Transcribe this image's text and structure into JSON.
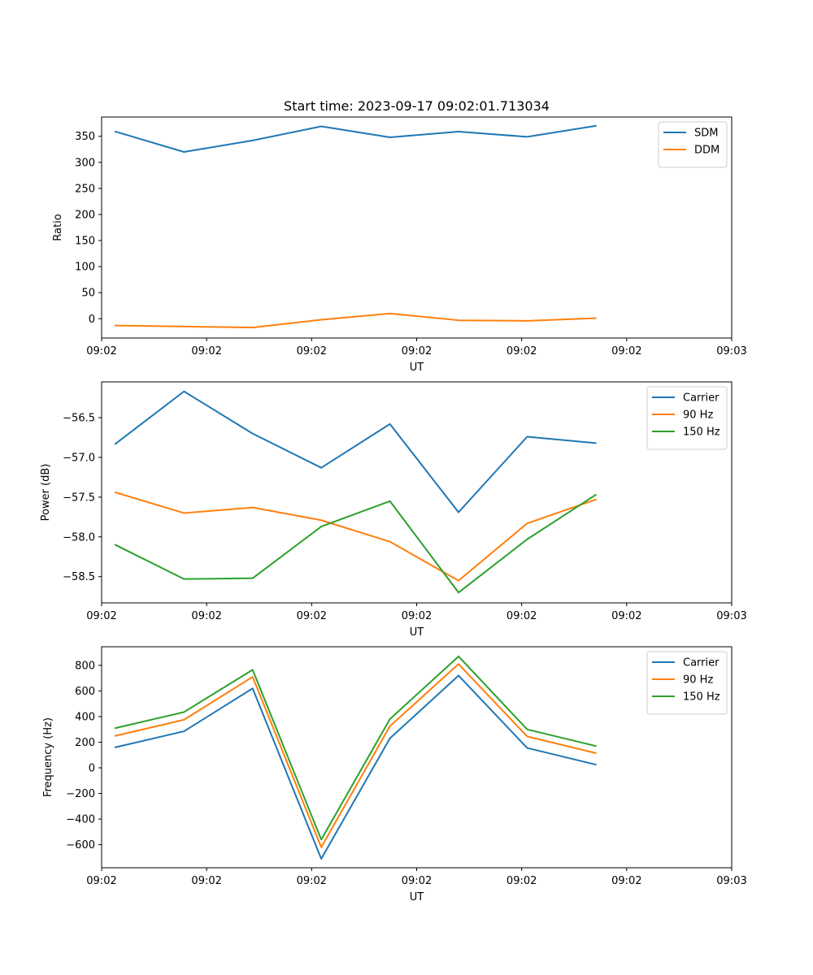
{
  "colors": {
    "blue": "#1f77b4",
    "orange": "#ff7f0e",
    "green": "#2ca02c"
  },
  "chart_data": [
    {
      "type": "line",
      "title": "Start time: 2023-09-17 09:02:01.713034",
      "xlabel": "UT",
      "ylabel": "Ratio",
      "x": [
        1,
        2,
        3,
        4,
        5,
        6,
        7,
        8
      ],
      "xlim": [
        0.8,
        9.98
      ],
      "xticks": [
        {
          "value": 0.8,
          "label": "09:02"
        },
        {
          "value": 2.33,
          "label": "09:02"
        },
        {
          "value": 3.86,
          "label": "09:02"
        },
        {
          "value": 5.39,
          "label": "09:02"
        },
        {
          "value": 6.92,
          "label": "09:02"
        },
        {
          "value": 8.45,
          "label": "09:02"
        },
        {
          "value": 9.98,
          "label": "09:03"
        }
      ],
      "ylim": [
        -37,
        387
      ],
      "yticks": [
        {
          "value": 0,
          "label": "0"
        },
        {
          "value": 50,
          "label": "50"
        },
        {
          "value": 100,
          "label": "100"
        },
        {
          "value": 150,
          "label": "150"
        },
        {
          "value": 200,
          "label": "200"
        },
        {
          "value": 250,
          "label": "250"
        },
        {
          "value": 300,
          "label": "300"
        },
        {
          "value": 350,
          "label": "350"
        }
      ],
      "legend": "top-right",
      "series": [
        {
          "name": "SDM",
          "color": "#1f77b4",
          "values": [
            359,
            320,
            342,
            369,
            348,
            359,
            349,
            370
          ]
        },
        {
          "name": "DDM",
          "color": "#ff7f0e",
          "values": [
            -13,
            -15,
            -17,
            -2,
            10,
            -3,
            -4,
            1
          ]
        }
      ]
    },
    {
      "type": "line",
      "title": "",
      "xlabel": "UT",
      "ylabel": "Power (dB)",
      "x": [
        1,
        2,
        3,
        4,
        5,
        6,
        7,
        8
      ],
      "xlim": [
        0.8,
        9.98
      ],
      "xticks": [
        {
          "value": 0.8,
          "label": "09:02"
        },
        {
          "value": 2.33,
          "label": "09:02"
        },
        {
          "value": 3.86,
          "label": "09:02"
        },
        {
          "value": 5.39,
          "label": "09:02"
        },
        {
          "value": 6.92,
          "label": "09:02"
        },
        {
          "value": 8.45,
          "label": "09:02"
        },
        {
          "value": 9.98,
          "label": "09:03"
        }
      ],
      "ylim": [
        -58.83,
        -56.05
      ],
      "yticks": [
        {
          "value": -58.5,
          "label": "−58.5"
        },
        {
          "value": -58.0,
          "label": "−58.0"
        },
        {
          "value": -57.5,
          "label": "−57.5"
        },
        {
          "value": -57.0,
          "label": "−57.0"
        },
        {
          "value": -56.5,
          "label": "−56.5"
        }
      ],
      "legend": "top-right",
      "series": [
        {
          "name": "Carrier",
          "color": "#1f77b4",
          "values": [
            -56.83,
            -56.17,
            -56.7,
            -57.13,
            -56.58,
            -57.69,
            -56.74,
            -56.82
          ]
        },
        {
          "name": "90 Hz",
          "color": "#ff7f0e",
          "values": [
            -57.44,
            -57.7,
            -57.63,
            -57.79,
            -58.06,
            -58.55,
            -57.83,
            -57.53
          ]
        },
        {
          "name": "150 Hz",
          "color": "#2ca02c",
          "values": [
            -58.1,
            -58.53,
            -58.52,
            -57.87,
            -57.55,
            -58.7,
            -58.03,
            -57.47
          ]
        }
      ]
    },
    {
      "type": "line",
      "title": "",
      "xlabel": "UT",
      "ylabel": "Frequency (Hz)",
      "x": [
        1,
        2,
        3,
        4,
        5,
        6,
        7,
        8
      ],
      "xlim": [
        0.8,
        9.98
      ],
      "xticks": [
        {
          "value": 0.8,
          "label": "09:02"
        },
        {
          "value": 2.33,
          "label": "09:02"
        },
        {
          "value": 3.86,
          "label": "09:02"
        },
        {
          "value": 5.39,
          "label": "09:02"
        },
        {
          "value": 6.92,
          "label": "09:02"
        },
        {
          "value": 8.45,
          "label": "09:02"
        },
        {
          "value": 9.98,
          "label": "09:03"
        }
      ],
      "ylim": [
        -780,
        945
      ],
      "yticks": [
        {
          "value": -600,
          "label": "−600"
        },
        {
          "value": -400,
          "label": "−400"
        },
        {
          "value": -200,
          "label": "−200"
        },
        {
          "value": 0,
          "label": "0"
        },
        {
          "value": 200,
          "label": "200"
        },
        {
          "value": 400,
          "label": "400"
        },
        {
          "value": 600,
          "label": "600"
        },
        {
          "value": 800,
          "label": "800"
        }
      ],
      "legend": "top-right",
      "series": [
        {
          "name": "Carrier",
          "color": "#1f77b4",
          "values": [
            160,
            285,
            620,
            -710,
            230,
            720,
            155,
            25
          ]
        },
        {
          "name": "90 Hz",
          "color": "#ff7f0e",
          "values": [
            250,
            375,
            710,
            -620,
            325,
            810,
            245,
            115
          ]
        },
        {
          "name": "150 Hz",
          "color": "#2ca02c",
          "values": [
            310,
            435,
            765,
            -560,
            380,
            870,
            300,
            170
          ]
        }
      ]
    }
  ]
}
